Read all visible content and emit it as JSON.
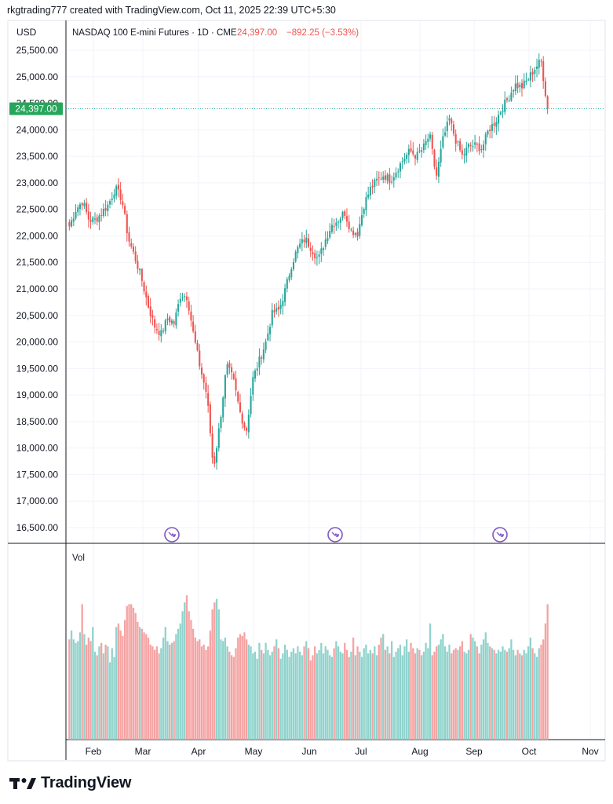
{
  "header": {
    "text": "rkgtrading777 created with TradingView.com, Oct 11, 2025 22:39 UTC+5:30"
  },
  "brand": {
    "name": "TradingView"
  },
  "legend": {
    "currency": "USD",
    "instrument": "NASDAQ 100 E-mini Futures · 1D · CME",
    "last": "24,397.00",
    "change": "−892.25 (−3.53%)"
  },
  "price_tag": "24,397.00",
  "volume_label": "Vol",
  "colors": {
    "up": "#26a69a",
    "down": "#ef5350",
    "vol_up": "#8fd3cc",
    "vol_down": "#f5a3a3",
    "tag": "#26a65b",
    "event": "#7e57c2",
    "grid": "#f0f3fa",
    "axis": "#131722"
  },
  "chart_data": {
    "type": "candlestick",
    "title": "NASDAQ 100 E-mini Futures · 1D · CME",
    "y_ticks": [
      "25,500.00",
      "25,000.00",
      "24,500.00",
      "24,000.00",
      "23,500.00",
      "23,000.00",
      "22,500.00",
      "22,000.00",
      "21,500.00",
      "21,000.00",
      "20,500.00",
      "20,000.00",
      "19,500.00",
      "19,000.00",
      "18,500.00",
      "18,000.00",
      "17,500.00",
      "17,000.00",
      "16,500.00"
    ],
    "ylim": [
      16500,
      25500
    ],
    "x_ticks": [
      "Feb",
      "Mar",
      "Apr",
      "May",
      "Jun",
      "Jul",
      "Aug",
      "Sep",
      "Oct",
      "Nov"
    ],
    "last_price": 24397,
    "events": 3,
    "volume_scale": [
      0,
      100
    ],
    "volume_series_note": "relative",
    "ohlc_anchor_closes": [
      22180,
      22500,
      22650,
      22300,
      22300,
      22450,
      22600,
      22900,
      22700,
      21950,
      21600,
      21200,
      20700,
      20300,
      20150,
      20450,
      20350,
      20900,
      20850,
      20100,
      19500,
      19000,
      17600,
      18500,
      19550,
      19300,
      18700,
      18300,
      19300,
      19650,
      20000,
      20550,
      20600,
      21000,
      21500,
      21800,
      21950,
      21750,
      21550,
      21900,
      22200,
      22300,
      22450,
      22100,
      22050,
      22600,
      22900,
      23050,
      23150,
      23050,
      23250,
      23450,
      23600,
      23500,
      23650,
      23900,
      23100,
      23800,
      24200,
      23800,
      23500,
      23700,
      23700,
      23650,
      24000,
      24150,
      24400,
      24600,
      24850,
      24800,
      24950,
      25150,
      25300,
      24397
    ],
    "ohlc_anchor_note": "close levels read from the candle path, in price units",
    "volume_values": [
      57,
      62,
      57,
      55,
      56,
      61,
      77,
      60,
      54,
      58,
      56,
      64,
      50,
      48,
      53,
      55,
      49,
      54,
      53,
      44,
      52,
      47,
      64,
      66,
      62,
      59,
      68,
      76,
      77,
      77,
      75,
      72,
      67,
      64,
      63,
      61,
      60,
      58,
      54,
      53,
      51,
      53,
      49,
      52,
      58,
      64,
      56,
      54,
      55,
      56,
      60,
      63,
      66,
      73,
      78,
      82,
      73,
      68,
      63,
      58,
      56,
      57,
      53,
      54,
      51,
      53,
      62,
      74,
      78,
      80,
      74,
      57,
      56,
      58,
      53,
      50,
      48,
      47,
      52,
      58,
      60,
      59,
      61,
      57,
      54,
      53,
      49,
      50,
      46,
      55,
      51,
      49,
      55,
      51,
      48,
      50,
      53,
      57,
      52,
      46,
      49,
      54,
      51,
      47,
      50,
      52,
      49,
      53,
      50,
      48,
      53,
      56,
      52,
      45,
      48,
      53,
      49,
      51,
      55,
      49,
      53,
      51,
      48,
      47,
      52,
      56,
      53,
      50,
      49,
      55,
      51,
      47,
      50,
      58,
      48,
      53,
      50,
      47,
      52,
      54,
      49,
      51,
      49,
      53,
      48,
      54,
      58,
      60,
      51,
      53,
      49,
      56,
      47,
      50,
      52,
      54,
      48,
      53,
      57,
      50,
      55,
      52,
      49,
      52,
      51,
      48,
      50,
      55,
      52,
      66,
      48,
      50,
      53,
      54,
      57,
      60,
      53,
      50,
      54,
      49,
      51,
      52,
      51,
      53,
      56,
      50,
      49,
      51,
      60,
      58,
      56,
      53,
      49,
      54,
      57,
      61,
      55,
      53,
      52,
      51,
      49,
      51,
      50,
      53,
      51,
      50,
      52,
      57,
      51,
      48,
      51,
      49,
      48,
      51,
      49,
      53,
      58,
      52,
      49,
      47,
      52,
      54,
      57,
      66,
      77
    ]
  }
}
